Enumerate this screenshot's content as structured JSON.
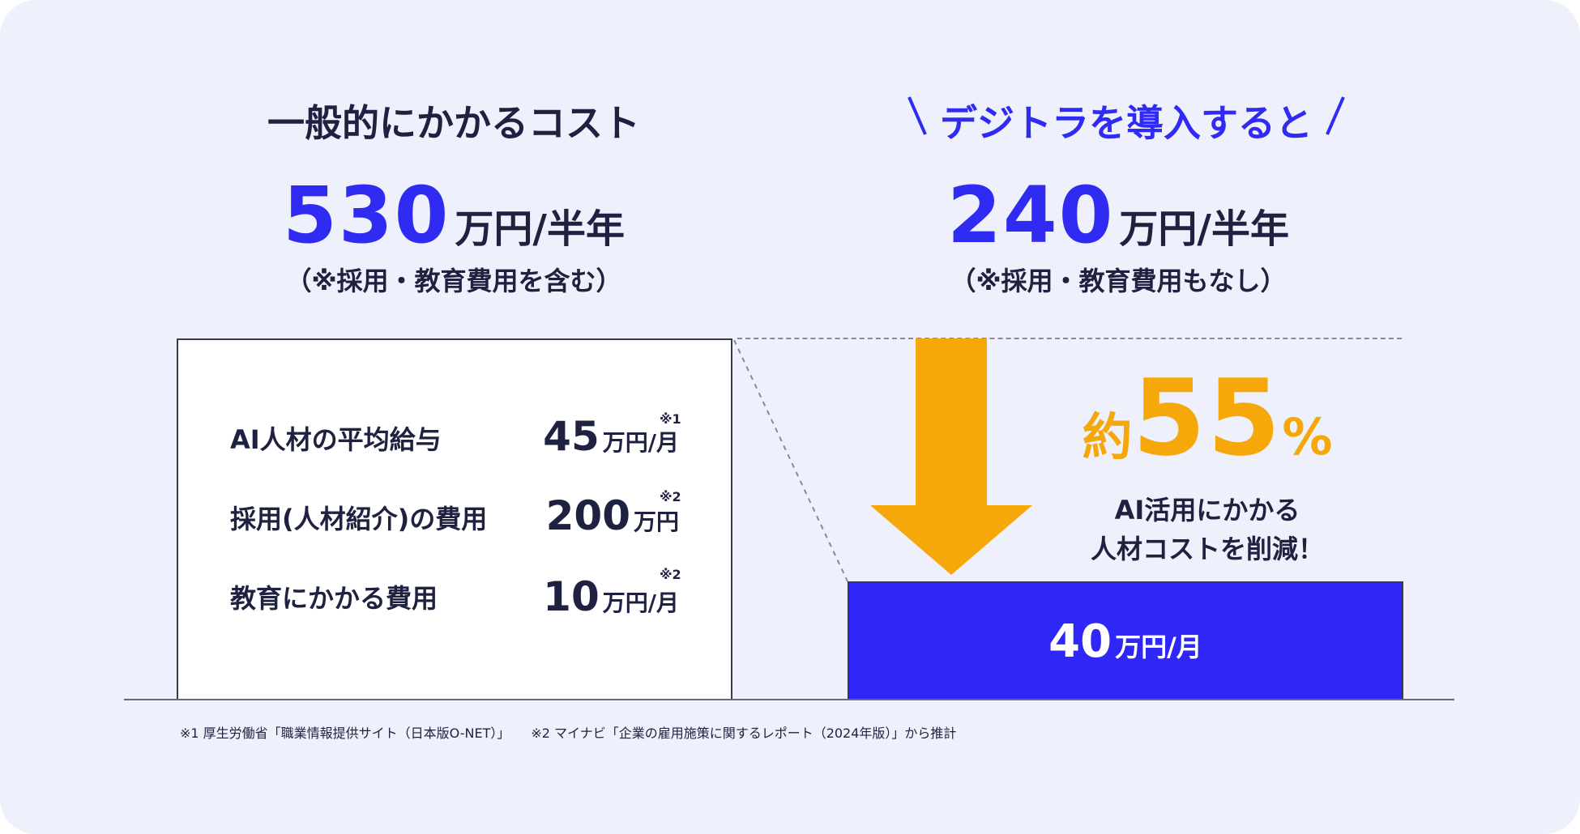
{
  "left": {
    "heading": "一般的にかかるコスト",
    "amount": "530",
    "unit": "万円/半年",
    "note": "（※採用・教育費用を含む）",
    "items": [
      {
        "label": "AI人材の平均給与",
        "value": "45",
        "unit": "万円/月",
        "ref": "※1"
      },
      {
        "label": "採用(人材紹介)の費用",
        "value": "200",
        "unit": "万円",
        "ref": "※2"
      },
      {
        "label": "教育にかかる費用",
        "value": "10",
        "unit": "万円/月",
        "ref": "※2"
      }
    ]
  },
  "right": {
    "heading": "デジトラを導入すると",
    "amount": "240",
    "unit": "万円/半年",
    "note": "（※採用・教育費用もなし）",
    "reduction": {
      "prefix": "約",
      "value": "55",
      "symbol": "%",
      "desc_line1": "AI活用にかかる",
      "desc_line2": "人材コストを削減！"
    },
    "bar": {
      "value": "40",
      "unit": "万円/月"
    }
  },
  "footnotes": [
    "※1 厚生労働省「職業情報提供サイト（日本版O-NET）」",
    "※2 マイナビ「企業の雇用施策に関するレポート（2024年版）」から推計"
  ],
  "colors": {
    "background": "#eef0fb",
    "accent_blue": "#2f2bf2",
    "accent_orange": "#f6a80a",
    "text": "#1f2140"
  }
}
